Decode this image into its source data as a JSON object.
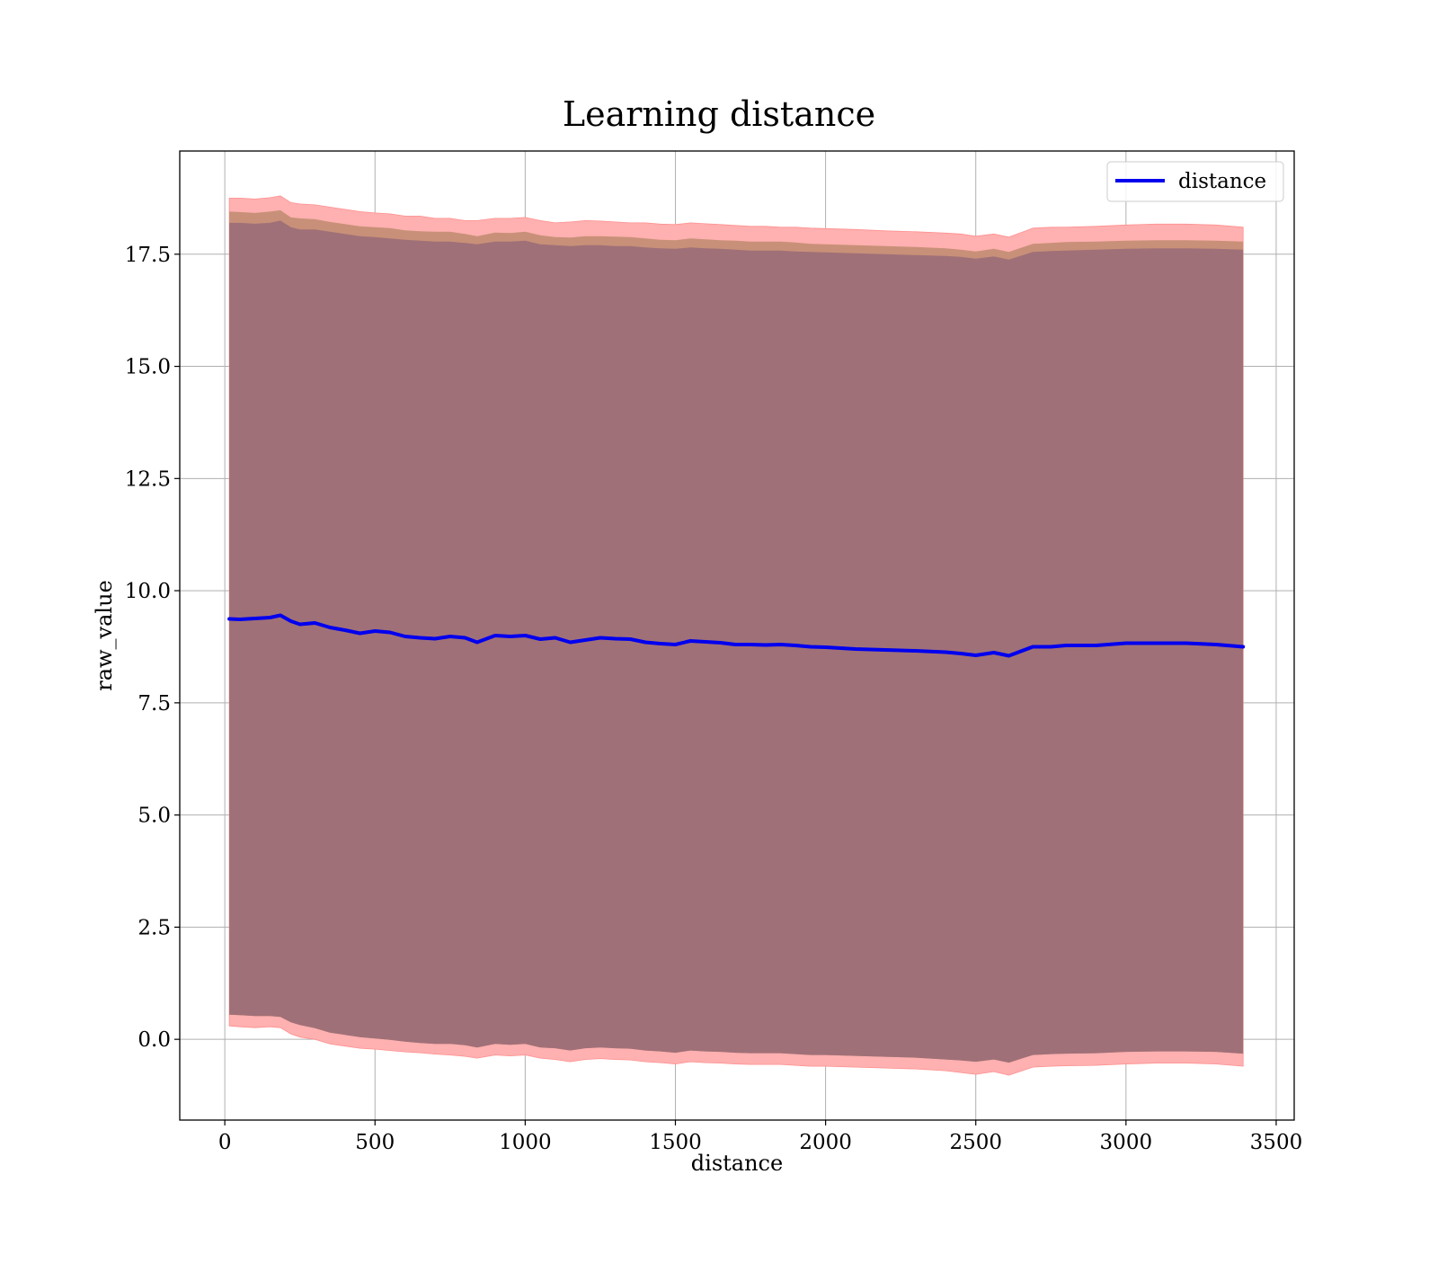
{
  "chart_data": {
    "type": "line",
    "title": "Learning distance",
    "xlabel": "distance",
    "ylabel": "raw_value",
    "xlim": [
      -150,
      3560
    ],
    "ylim": [
      -1.8,
      19.8
    ],
    "xticks": [
      0,
      500,
      1000,
      1500,
      2000,
      2500,
      3000,
      3500
    ],
    "yticks": [
      0.0,
      2.5,
      5.0,
      7.5,
      10.0,
      12.5,
      15.0,
      17.5
    ],
    "xtick_labels": [
      "0",
      "500",
      "1000",
      "1500",
      "2000",
      "2500",
      "3000",
      "3500"
    ],
    "ytick_labels": [
      "0.0",
      "2.5",
      "5.0",
      "7.5",
      "10.0",
      "12.5",
      "15.0",
      "17.5"
    ],
    "grid": true,
    "legend": {
      "position": "top-right",
      "entries": [
        "distance"
      ]
    },
    "colors": {
      "line": "#0000ee",
      "band_outer": "#ffb0b0",
      "band_middle": "#c89078",
      "band_inner": "#a07078",
      "grid": "#b0b0b0"
    },
    "series": [
      {
        "name": "distance",
        "x": [
          15,
          50,
          100,
          150,
          185,
          220,
          250,
          300,
          350,
          400,
          450,
          500,
          550,
          600,
          650,
          700,
          750,
          800,
          840,
          900,
          950,
          1000,
          1050,
          1100,
          1150,
          1200,
          1250,
          1300,
          1350,
          1400,
          1450,
          1500,
          1550,
          1600,
          1650,
          1700,
          1750,
          1800,
          1850,
          1900,
          1950,
          2000,
          2100,
          2200,
          2300,
          2400,
          2450,
          2500,
          2560,
          2610,
          2690,
          2750,
          2800,
          2900,
          3000,
          3100,
          3200,
          3300,
          3390
        ],
        "y": [
          9.37,
          9.36,
          9.38,
          9.4,
          9.45,
          9.32,
          9.25,
          9.28,
          9.18,
          9.12,
          9.05,
          9.1,
          9.07,
          8.98,
          8.95,
          8.93,
          8.98,
          8.95,
          8.85,
          9.0,
          8.98,
          9.0,
          8.92,
          8.95,
          8.85,
          8.9,
          8.95,
          8.93,
          8.92,
          8.85,
          8.82,
          8.8,
          8.88,
          8.86,
          8.84,
          8.8,
          8.8,
          8.79,
          8.8,
          8.78,
          8.75,
          8.74,
          8.7,
          8.68,
          8.66,
          8.63,
          8.6,
          8.56,
          8.62,
          8.55,
          8.75,
          8.75,
          8.78,
          8.78,
          8.83,
          8.83,
          8.83,
          8.8,
          8.75
        ],
        "band_outer_upper": [
          18.75,
          18.75,
          18.73,
          18.76,
          18.8,
          18.65,
          18.62,
          18.6,
          18.55,
          18.5,
          18.45,
          18.42,
          18.4,
          18.35,
          18.35,
          18.3,
          18.3,
          18.25,
          18.25,
          18.3,
          18.3,
          18.32,
          18.25,
          18.2,
          18.22,
          18.25,
          18.24,
          18.22,
          18.2,
          18.2,
          18.17,
          18.16,
          18.2,
          18.18,
          18.16,
          18.14,
          18.12,
          18.12,
          18.1,
          18.1,
          18.08,
          18.07,
          18.05,
          18.02,
          18.0,
          17.97,
          17.95,
          17.9,
          17.95,
          17.88,
          18.08,
          18.1,
          18.1,
          18.12,
          18.15,
          18.17,
          18.17,
          18.15,
          18.1
        ],
        "band_outer_lower": [
          0.3,
          0.28,
          0.26,
          0.28,
          0.26,
          0.12,
          0.05,
          0.0,
          -0.1,
          -0.15,
          -0.2,
          -0.22,
          -0.25,
          -0.28,
          -0.3,
          -0.33,
          -0.35,
          -0.38,
          -0.42,
          -0.35,
          -0.37,
          -0.35,
          -0.42,
          -0.45,
          -0.5,
          -0.45,
          -0.43,
          -0.45,
          -0.46,
          -0.5,
          -0.52,
          -0.55,
          -0.5,
          -0.52,
          -0.53,
          -0.55,
          -0.56,
          -0.56,
          -0.56,
          -0.58,
          -0.6,
          -0.6,
          -0.62,
          -0.64,
          -0.66,
          -0.7,
          -0.74,
          -0.78,
          -0.72,
          -0.8,
          -0.62,
          -0.6,
          -0.59,
          -0.58,
          -0.55,
          -0.53,
          -0.53,
          -0.55,
          -0.6
        ],
        "band_middle_upper": [
          18.45,
          18.44,
          18.42,
          18.45,
          18.48,
          18.32,
          18.3,
          18.28,
          18.22,
          18.17,
          18.12,
          18.1,
          18.08,
          18.03,
          18.01,
          18.0,
          18.0,
          17.95,
          17.9,
          17.98,
          17.97,
          18.0,
          17.92,
          17.88,
          17.87,
          17.9,
          17.9,
          17.89,
          17.88,
          17.85,
          17.82,
          17.81,
          17.85,
          17.83,
          17.81,
          17.8,
          17.78,
          17.78,
          17.78,
          17.76,
          17.73,
          17.72,
          17.7,
          17.68,
          17.66,
          17.63,
          17.6,
          17.56,
          17.62,
          17.55,
          17.73,
          17.75,
          17.77,
          17.78,
          17.8,
          17.81,
          17.81,
          17.8,
          17.78
        ],
        "band_middle_lower": [
          0.55,
          0.54,
          0.52,
          0.52,
          0.5,
          0.38,
          0.32,
          0.25,
          0.15,
          0.1,
          0.05,
          0.02,
          -0.01,
          -0.05,
          -0.08,
          -0.1,
          -0.1,
          -0.13,
          -0.18,
          -0.1,
          -0.12,
          -0.1,
          -0.18,
          -0.2,
          -0.25,
          -0.2,
          -0.18,
          -0.2,
          -0.21,
          -0.25,
          -0.27,
          -0.3,
          -0.25,
          -0.27,
          -0.28,
          -0.3,
          -0.31,
          -0.31,
          -0.31,
          -0.33,
          -0.35,
          -0.35,
          -0.37,
          -0.39,
          -0.41,
          -0.45,
          -0.47,
          -0.5,
          -0.45,
          -0.52,
          -0.35,
          -0.33,
          -0.32,
          -0.31,
          -0.28,
          -0.27,
          -0.27,
          -0.28,
          -0.32
        ],
        "band_inner_upper": [
          18.2,
          18.2,
          18.18,
          18.2,
          18.25,
          18.1,
          18.05,
          18.05,
          18.0,
          17.95,
          17.9,
          17.88,
          17.85,
          17.82,
          17.8,
          17.78,
          17.78,
          17.75,
          17.72,
          17.78,
          17.78,
          17.8,
          17.72,
          17.7,
          17.68,
          17.7,
          17.7,
          17.68,
          17.68,
          17.65,
          17.63,
          17.62,
          17.65,
          17.63,
          17.62,
          17.6,
          17.58,
          17.58,
          17.58,
          17.56,
          17.55,
          17.54,
          17.52,
          17.5,
          17.48,
          17.46,
          17.44,
          17.4,
          17.45,
          17.38,
          17.55,
          17.57,
          17.58,
          17.6,
          17.62,
          17.63,
          17.63,
          17.62,
          17.6
        ]
      }
    ]
  }
}
